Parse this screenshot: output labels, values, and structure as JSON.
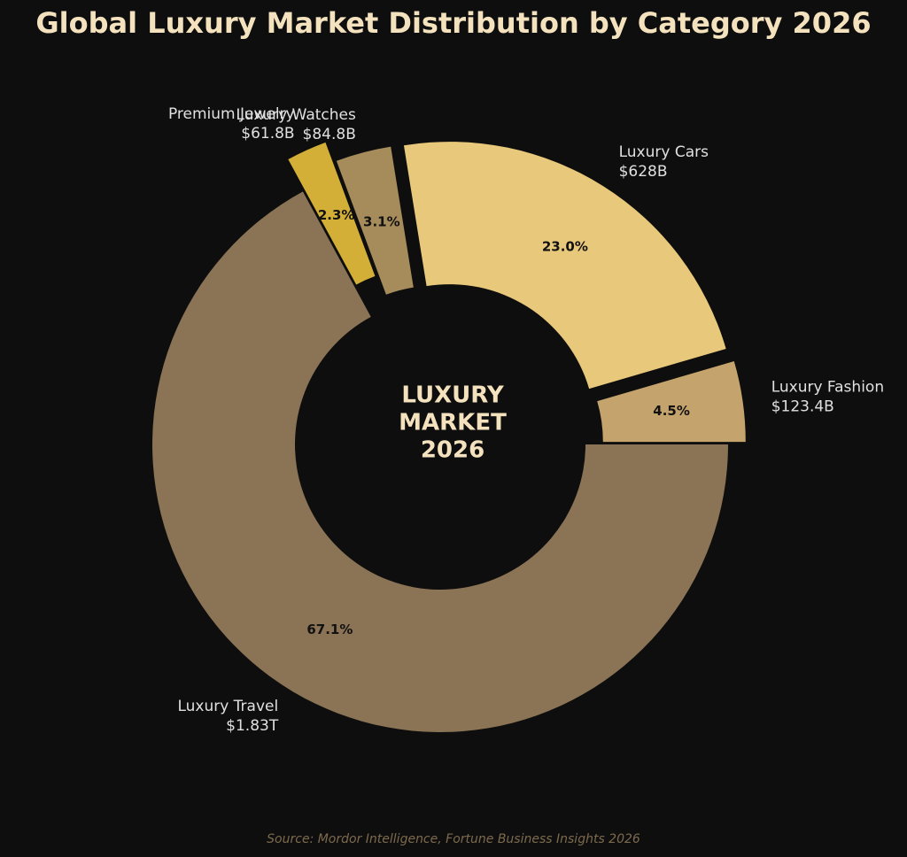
{
  "chart_data": {
    "type": "donut",
    "title": "Global Luxury Market Distribution by Category 2026",
    "categories": [
      "Luxury Fashion",
      "Luxury Cars",
      "Luxury Watches",
      "Premium Jewelry",
      "Luxury Travel"
    ],
    "values": [
      123.4,
      628,
      84.8,
      61.8,
      1830
    ],
    "value_labels": [
      "$123.4B",
      "$628B",
      "$84.8B",
      "$61.8B",
      "$1.83T"
    ],
    "percent_labels": [
      "4.5%",
      "23.0%",
      "3.1%",
      "2.3%",
      "67.1%"
    ],
    "colors": [
      "#c4a46c",
      "#e8c87a",
      "#a68b5b",
      "#d4af37",
      "#8b7355"
    ],
    "center_label": [
      "LUXURY",
      "MARKET",
      "2026"
    ],
    "source": "Source: Mordor Intelligence, Fortune Business Insights 2026"
  }
}
